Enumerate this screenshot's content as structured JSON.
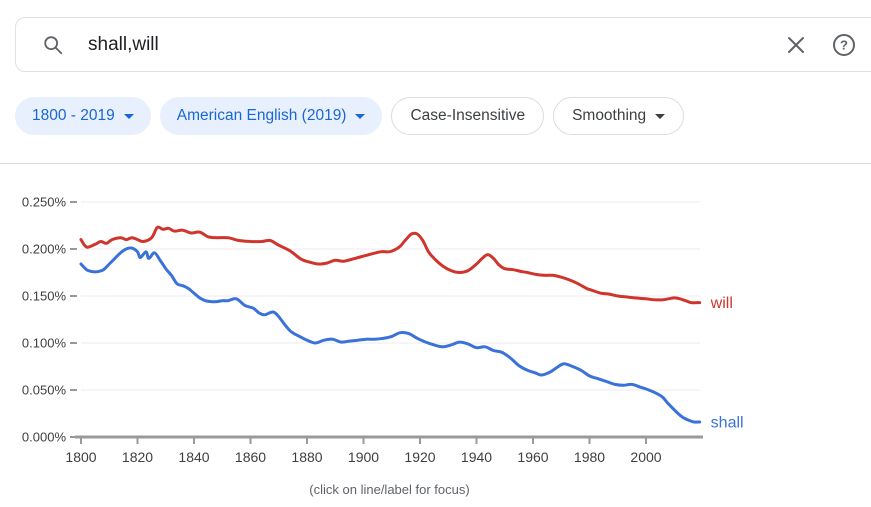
{
  "search": {
    "query": "shall,will"
  },
  "filters": {
    "year_range": {
      "label": "1800 - 2019",
      "has_dropdown": true
    },
    "corpus": {
      "label": "American English (2019)",
      "has_dropdown": true
    },
    "case": {
      "label": "Case-Insensitive",
      "has_dropdown": false
    },
    "smoothing": {
      "label": "Smoothing",
      "has_dropdown": true
    }
  },
  "colors": {
    "chip_blue_text": "#1967d2",
    "chip_blue_bg": "#e8f0fe",
    "chip_outline_border": "#dadce0",
    "icon_gray": "#5f6368",
    "axis_gray": "#9a9a9a",
    "grid_gray": "#ebebeb",
    "tick_label": "#3f3f3f",
    "caption_gray": "#5f6368",
    "will_red": "#cf352c",
    "shall_blue": "#3b72d9"
  },
  "chart_data": {
    "type": "line",
    "title": "",
    "xlabel": "",
    "ylabel": "",
    "y_unit": "%",
    "xlim": [
      1800,
      2019
    ],
    "ylim": [
      0,
      0.25
    ],
    "x_ticks": [
      1800,
      1820,
      1840,
      1860,
      1880,
      1900,
      1920,
      1940,
      1960,
      1980,
      2000
    ],
    "y_tick_labels": [
      "0.000%",
      "0.050%",
      "0.100%",
      "0.150%",
      "0.200%",
      "0.250%"
    ],
    "grid": true,
    "legend_position": "end-of-line-labels",
    "caption": "(click on line/label for focus)",
    "series": [
      {
        "name": "will",
        "color": "#cf352c",
        "points": [
          [
            1800,
            0.21
          ],
          [
            1802,
            0.202
          ],
          [
            1805,
            0.205
          ],
          [
            1807,
            0.208
          ],
          [
            1809,
            0.206
          ],
          [
            1811,
            0.21
          ],
          [
            1814,
            0.212
          ],
          [
            1816,
            0.21
          ],
          [
            1818,
            0.212
          ],
          [
            1820,
            0.21
          ],
          [
            1822,
            0.208
          ],
          [
            1825,
            0.212
          ],
          [
            1827,
            0.223
          ],
          [
            1829,
            0.221
          ],
          [
            1831,
            0.222
          ],
          [
            1833,
            0.219
          ],
          [
            1836,
            0.22
          ],
          [
            1839,
            0.217
          ],
          [
            1842,
            0.218
          ],
          [
            1845,
            0.213
          ],
          [
            1848,
            0.212
          ],
          [
            1852,
            0.212
          ],
          [
            1856,
            0.209
          ],
          [
            1860,
            0.208
          ],
          [
            1864,
            0.208
          ],
          [
            1867,
            0.209
          ],
          [
            1870,
            0.204
          ],
          [
            1874,
            0.198
          ],
          [
            1878,
            0.189
          ],
          [
            1881,
            0.186
          ],
          [
            1884,
            0.184
          ],
          [
            1887,
            0.185
          ],
          [
            1890,
            0.188
          ],
          [
            1893,
            0.187
          ],
          [
            1897,
            0.19
          ],
          [
            1902,
            0.194
          ],
          [
            1906,
            0.197
          ],
          [
            1909,
            0.197
          ],
          [
            1911,
            0.199
          ],
          [
            1913,
            0.203
          ],
          [
            1915,
            0.21
          ],
          [
            1917,
            0.216
          ],
          [
            1919,
            0.216
          ],
          [
            1921,
            0.209
          ],
          [
            1923,
            0.197
          ],
          [
            1925,
            0.19
          ],
          [
            1928,
            0.182
          ],
          [
            1931,
            0.177
          ],
          [
            1934,
            0.175
          ],
          [
            1937,
            0.177
          ],
          [
            1940,
            0.184
          ],
          [
            1942,
            0.19
          ],
          [
            1944,
            0.194
          ],
          [
            1946,
            0.19
          ],
          [
            1948,
            0.183
          ],
          [
            1950,
            0.179
          ],
          [
            1953,
            0.178
          ],
          [
            1956,
            0.176
          ],
          [
            1958,
            0.175
          ],
          [
            1961,
            0.173
          ],
          [
            1964,
            0.172
          ],
          [
            1967,
            0.172
          ],
          [
            1970,
            0.17
          ],
          [
            1973,
            0.167
          ],
          [
            1976,
            0.163
          ],
          [
            1979,
            0.158
          ],
          [
            1981,
            0.156
          ],
          [
            1984,
            0.153
          ],
          [
            1987,
            0.152
          ],
          [
            1990,
            0.15
          ],
          [
            1993,
            0.149
          ],
          [
            1996,
            0.148
          ],
          [
            2000,
            0.147
          ],
          [
            2003,
            0.146
          ],
          [
            2006,
            0.146
          ],
          [
            2008,
            0.147
          ],
          [
            2010,
            0.148
          ],
          [
            2012,
            0.147
          ],
          [
            2014,
            0.145
          ],
          [
            2016,
            0.143
          ],
          [
            2019,
            0.143
          ]
        ]
      },
      {
        "name": "shall",
        "color": "#3b72d9",
        "points": [
          [
            1800,
            0.184
          ],
          [
            1802,
            0.178
          ],
          [
            1804,
            0.176
          ],
          [
            1806,
            0.176
          ],
          [
            1808,
            0.178
          ],
          [
            1810,
            0.184
          ],
          [
            1812,
            0.19
          ],
          [
            1814,
            0.196
          ],
          [
            1816,
            0.2
          ],
          [
            1818,
            0.201
          ],
          [
            1820,
            0.197
          ],
          [
            1821,
            0.191
          ],
          [
            1823,
            0.197
          ],
          [
            1824,
            0.19
          ],
          [
            1826,
            0.196
          ],
          [
            1828,
            0.188
          ],
          [
            1830,
            0.179
          ],
          [
            1832,
            0.172
          ],
          [
            1834,
            0.163
          ],
          [
            1836,
            0.161
          ],
          [
            1838,
            0.158
          ],
          [
            1840,
            0.153
          ],
          [
            1842,
            0.148
          ],
          [
            1844,
            0.145
          ],
          [
            1846,
            0.144
          ],
          [
            1848,
            0.144
          ],
          [
            1850,
            0.145
          ],
          [
            1852,
            0.145
          ],
          [
            1855,
            0.147
          ],
          [
            1858,
            0.14
          ],
          [
            1861,
            0.137
          ],
          [
            1863,
            0.132
          ],
          [
            1865,
            0.13
          ],
          [
            1868,
            0.133
          ],
          [
            1870,
            0.128
          ],
          [
            1872,
            0.12
          ],
          [
            1874,
            0.113
          ],
          [
            1876,
            0.109
          ],
          [
            1878,
            0.106
          ],
          [
            1880,
            0.103
          ],
          [
            1883,
            0.1
          ],
          [
            1886,
            0.103
          ],
          [
            1889,
            0.104
          ],
          [
            1892,
            0.101
          ],
          [
            1895,
            0.102
          ],
          [
            1898,
            0.103
          ],
          [
            1901,
            0.104
          ],
          [
            1904,
            0.104
          ],
          [
            1907,
            0.105
          ],
          [
            1910,
            0.107
          ],
          [
            1913,
            0.111
          ],
          [
            1916,
            0.11
          ],
          [
            1919,
            0.105
          ],
          [
            1922,
            0.101
          ],
          [
            1925,
            0.098
          ],
          [
            1928,
            0.096
          ],
          [
            1931,
            0.098
          ],
          [
            1934,
            0.101
          ],
          [
            1937,
            0.099
          ],
          [
            1940,
            0.095
          ],
          [
            1943,
            0.096
          ],
          [
            1946,
            0.092
          ],
          [
            1949,
            0.09
          ],
          [
            1952,
            0.084
          ],
          [
            1955,
            0.076
          ],
          [
            1958,
            0.071
          ],
          [
            1961,
            0.068
          ],
          [
            1963,
            0.066
          ],
          [
            1966,
            0.069
          ],
          [
            1969,
            0.075
          ],
          [
            1971,
            0.078
          ],
          [
            1974,
            0.075
          ],
          [
            1977,
            0.071
          ],
          [
            1980,
            0.065
          ],
          [
            1983,
            0.062
          ],
          [
            1986,
            0.059
          ],
          [
            1989,
            0.056
          ],
          [
            1992,
            0.055
          ],
          [
            1995,
            0.056
          ],
          [
            1998,
            0.053
          ],
          [
            2001,
            0.05
          ],
          [
            2004,
            0.046
          ],
          [
            2006,
            0.042
          ],
          [
            2008,
            0.035
          ],
          [
            2011,
            0.026
          ],
          [
            2013,
            0.021
          ],
          [
            2015,
            0.018
          ],
          [
            2017,
            0.016
          ],
          [
            2019,
            0.016
          ]
        ]
      }
    ]
  }
}
